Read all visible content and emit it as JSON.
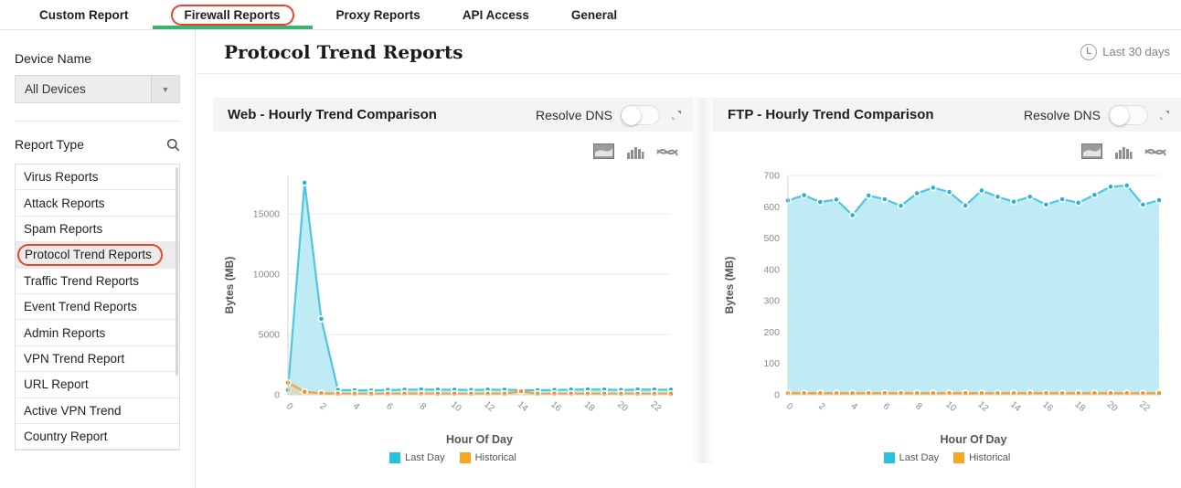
{
  "tabs": [
    {
      "label": "Custom Report",
      "active": false
    },
    {
      "label": "Firewall Reports",
      "active": true,
      "annotated": true
    },
    {
      "label": "Proxy Reports",
      "active": false
    },
    {
      "label": "API Access",
      "active": false
    },
    {
      "label": "General",
      "active": false
    }
  ],
  "sidebar": {
    "device_name_label": "Device Name",
    "device_select_value": "All Devices",
    "report_type_label": "Report Type",
    "items": [
      {
        "label": "Virus Reports",
        "active": false
      },
      {
        "label": "Attack Reports",
        "active": false
      },
      {
        "label": "Spam Reports",
        "active": false
      },
      {
        "label": "Protocol Trend Reports",
        "active": true,
        "annotated": true
      },
      {
        "label": "Traffic Trend Reports",
        "active": false
      },
      {
        "label": "Event Trend Reports",
        "active": false
      },
      {
        "label": "Admin Reports",
        "active": false
      },
      {
        "label": "VPN Trend Report",
        "active": false
      },
      {
        "label": "URL Report",
        "active": false
      },
      {
        "label": "Active VPN Trend",
        "active": false
      },
      {
        "label": "Country Report",
        "active": false
      }
    ]
  },
  "header": {
    "title": "Protocol Trend Reports",
    "period_label": "Last 30 days",
    "period_icon_letter": "L"
  },
  "cards": [
    {
      "title": "Web - Hourly Trend Comparison",
      "resolve_dns_label": "Resolve DNS",
      "toggle_state": "off"
    },
    {
      "title": "FTP - Hourly Trend Comparison",
      "resolve_dns_label": "Resolve DNS",
      "toggle_state": "off"
    }
  ],
  "legend": {
    "items": [
      {
        "label": "Last Day",
        "color": "#29c2de"
      },
      {
        "label": "Historical",
        "color": "#f5a623"
      }
    ]
  },
  "colors": {
    "accent_green": "#3cb372",
    "annotation_red": "#e8432d",
    "lastday_line": "#4fc6e1",
    "lastday_fill": "#b4e7f2",
    "lastday_marker": "#27b2d4",
    "historical_line": "#f2a238",
    "historical_fill": "#edcf9e",
    "historical_marker": "#f0941f"
  },
  "chart_data": [
    {
      "type": "area",
      "title": "Web - Hourly Trend Comparison",
      "xlabel": "Hour Of Day",
      "ylabel": "Bytes (MB)",
      "x": [
        0,
        1,
        2,
        3,
        4,
        5,
        6,
        7,
        8,
        9,
        10,
        11,
        12,
        13,
        14,
        15,
        16,
        17,
        18,
        19,
        20,
        21,
        22,
        23
      ],
      "xticks": [
        0,
        2,
        4,
        6,
        8,
        10,
        12,
        14,
        16,
        18,
        20,
        22
      ],
      "ylim": [
        0,
        18200
      ],
      "yticks": [
        0,
        5000,
        10000,
        15000
      ],
      "grid": true,
      "legend_position": "bottom",
      "series": [
        {
          "name": "Last Day",
          "values": [
            400,
            17600,
            6300,
            400,
            380,
            360,
            400,
            420,
            440,
            430,
            420,
            400,
            430,
            420,
            400,
            380,
            400,
            430,
            450,
            430,
            400,
            440,
            430,
            420
          ]
        },
        {
          "name": "Historical",
          "values": [
            1000,
            250,
            130,
            90,
            90,
            85,
            90,
            100,
            95,
            90,
            90,
            90,
            95,
            90,
            290,
            90,
            90,
            90,
            95,
            90,
            90,
            90,
            90,
            90
          ]
        }
      ]
    },
    {
      "type": "area",
      "title": "FTP - Hourly Trend Comparison",
      "xlabel": "Hour Of Day",
      "ylabel": "Bytes (MB)",
      "x": [
        0,
        1,
        2,
        3,
        4,
        5,
        6,
        7,
        8,
        9,
        10,
        11,
        12,
        13,
        14,
        15,
        16,
        17,
        18,
        19,
        20,
        21,
        22,
        23
      ],
      "xticks": [
        0,
        2,
        4,
        6,
        8,
        10,
        12,
        14,
        16,
        18,
        20,
        22
      ],
      "ylim": [
        0,
        700
      ],
      "yticks": [
        0,
        100,
        200,
        300,
        400,
        500,
        600,
        700
      ],
      "grid": true,
      "legend_position": "bottom",
      "series": [
        {
          "name": "Last Day",
          "values": [
            620,
            637,
            615,
            623,
            573,
            636,
            624,
            603,
            643,
            661,
            647,
            604,
            652,
            632,
            616,
            632,
            607,
            624,
            613,
            638,
            664,
            668,
            607,
            621
          ]
        },
        {
          "name": "Historical",
          "values": [
            5,
            5,
            5,
            5,
            5,
            5,
            5,
            5,
            5,
            5,
            5,
            5,
            5,
            5,
            5,
            5,
            5,
            5,
            5,
            5,
            5,
            5,
            5,
            5
          ]
        }
      ]
    }
  ]
}
